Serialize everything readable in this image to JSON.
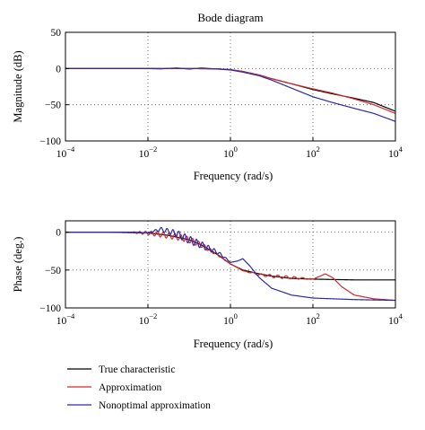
{
  "chart_data": [
    {
      "type": "line",
      "title": "Bode diagram",
      "xlabel": "Frequency (rad/s)",
      "ylabel": "Magnitude (dB)",
      "x_scale": "log",
      "xlim": [
        0.0001,
        10000
      ],
      "ylim": [
        -100,
        50
      ],
      "x_ticks": [
        0.0001,
        0.01,
        1,
        100,
        10000
      ],
      "x_tick_labels": [
        {
          "base": "10",
          "exp": "−4"
        },
        {
          "base": "10",
          "exp": "−2"
        },
        {
          "base": "10",
          "exp": "0"
        },
        {
          "base": "10",
          "exp": "2"
        },
        {
          "base": "10",
          "exp": "4"
        }
      ],
      "y_ticks": [
        -100,
        -50,
        0,
        50
      ],
      "y_tick_labels": [
        "−100",
        "−50",
        "0",
        "50"
      ],
      "grid": "dotted",
      "series": [
        {
          "name": "True characteristic",
          "color": "#000000",
          "x": [
            0.0001,
            0.001,
            0.01,
            0.1,
            0.5,
            1,
            2,
            5,
            10,
            30,
            100,
            300,
            1000,
            3000,
            10000
          ],
          "y": [
            0,
            0,
            0,
            0,
            -0.5,
            -1.5,
            -4,
            -9,
            -14,
            -21,
            -29,
            -35,
            -41,
            -47,
            -59
          ]
        },
        {
          "name": "Approximation",
          "color": "#d62728",
          "x": [
            0.0001,
            0.001,
            0.01,
            0.1,
            0.5,
            1,
            2,
            5,
            10,
            30,
            100,
            300,
            1000,
            3000,
            10000
          ],
          "y": [
            0,
            0,
            0,
            0,
            -0.5,
            -1.5,
            -4,
            -9,
            -14,
            -21,
            -28,
            -34,
            -42,
            -50,
            -62
          ]
        },
        {
          "name": "Nonoptimal approximation",
          "color": "#2a2aa8",
          "x": [
            0.0001,
            0.001,
            0.01,
            0.02,
            0.05,
            0.1,
            0.2,
            0.5,
            1,
            2,
            5,
            10,
            30,
            100,
            300,
            1000,
            3000,
            10000
          ],
          "y": [
            0,
            0,
            0,
            -0.5,
            0.8,
            -0.8,
            0.8,
            -0.8,
            -2,
            -5,
            -10,
            -16,
            -27,
            -39,
            -47,
            -55,
            -62,
            -73
          ]
        }
      ]
    },
    {
      "type": "line",
      "title": "",
      "xlabel": "Frequency (rad/s)",
      "ylabel": "Phase (deg.)",
      "x_scale": "log",
      "xlim": [
        0.0001,
        10000
      ],
      "ylim": [
        -100,
        15
      ],
      "x_ticks": [
        0.0001,
        0.01,
        1,
        100,
        10000
      ],
      "x_tick_labels": [
        {
          "base": "10",
          "exp": "−4"
        },
        {
          "base": "10",
          "exp": "−2"
        },
        {
          "base": "10",
          "exp": "0"
        },
        {
          "base": "10",
          "exp": "2"
        },
        {
          "base": "10",
          "exp": "4"
        }
      ],
      "y_ticks": [
        -100,
        -50,
        0
      ],
      "y_tick_labels": [
        "−100",
        "−50",
        "0"
      ],
      "grid": "dotted",
      "series": [
        {
          "name": "True characteristic",
          "color": "#000000",
          "x": [
            0.0001,
            0.001,
            0.01,
            0.03,
            0.1,
            0.2,
            0.5,
            1,
            2,
            5,
            10,
            30,
            100,
            1000,
            10000
          ],
          "y": [
            0,
            0,
            -1,
            -4,
            -10,
            -17,
            -30,
            -42,
            -50,
            -55,
            -58,
            -61,
            -62,
            -63,
            -63
          ]
        },
        {
          "name": "Approximation",
          "color": "#d62728",
          "x": [
            0.0001,
            0.001,
            0.003,
            0.01,
            0.02,
            0.05,
            0.1,
            0.2,
            0.5,
            1,
            1.5,
            2,
            5,
            10,
            30,
            100,
            150,
            200,
            300,
            500,
            1000,
            3000,
            10000
          ],
          "y": [
            0,
            0,
            0,
            -1,
            -3,
            -6,
            -10,
            -17,
            -30,
            -42,
            -47,
            -51,
            -56,
            -58,
            -60,
            -62,
            -58,
            -55,
            -60,
            -72,
            -83,
            -88,
            -90
          ]
        },
        {
          "name": "Nonoptimal approximation",
          "color": "#2a2aa8",
          "x": [
            0.0001,
            0.001,
            0.005,
            0.01,
            0.02,
            0.05,
            0.1,
            0.2,
            0.5,
            0.8,
            1,
            1.5,
            2,
            3,
            5,
            10,
            30,
            100,
            1000,
            10000
          ],
          "y": [
            0,
            0,
            0,
            -1,
            4,
            -2,
            -10,
            -17,
            -27,
            -35,
            -40,
            -38,
            -35,
            -45,
            -60,
            -74,
            -83,
            -87,
            -89,
            -90
          ]
        }
      ],
      "wiggles": [
        {
          "series": 1,
          "from": 0.003,
          "to": 1,
          "amp": 4,
          "cycles_per_decade": 7
        },
        {
          "series": 2,
          "from": 0.01,
          "to": 1,
          "amp": 5,
          "cycles_per_decade": 7
        },
        {
          "series": 1,
          "from": 2,
          "to": 120,
          "amp": 2,
          "cycles_per_decade": 5
        }
      ]
    }
  ],
  "legend": {
    "placement": "bottom-left",
    "entries": [
      {
        "label": "True characteristic",
        "color": "#000000"
      },
      {
        "label": "Approximation",
        "color": "#d62728"
      },
      {
        "label": "Nonoptimal approximation",
        "color": "#2a2aa8"
      }
    ]
  }
}
